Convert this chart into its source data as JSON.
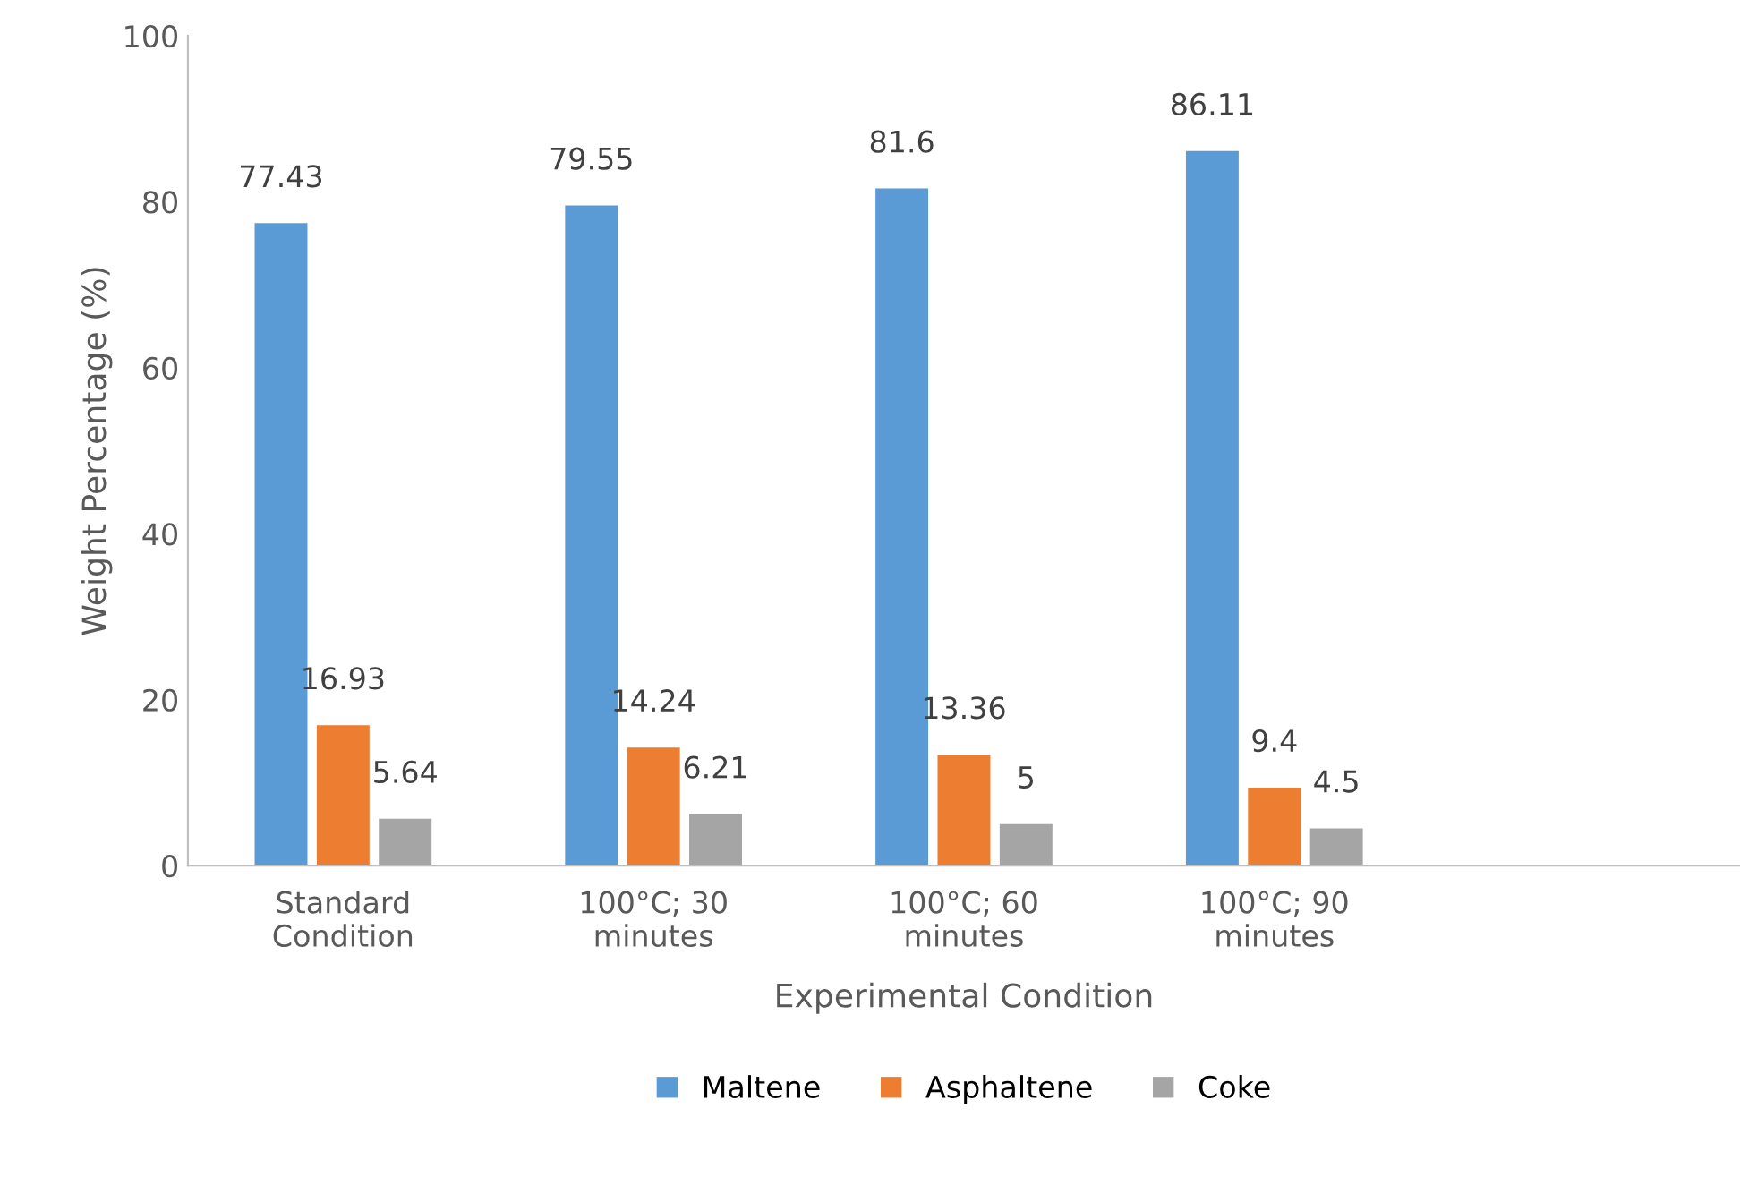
{
  "chart_data": {
    "type": "bar",
    "xlabel": "Experimental Condition",
    "ylabel": "Weight Percentage (%)",
    "categories": [
      "Standard\nCondition",
      "100°C; 30\nminutes",
      "100°C; 60\nminutes",
      "100°C; 90\nminutes",
      null
    ],
    "series": [
      {
        "name": "Maltene",
        "color": "#5b9bd5",
        "values": [
          77.43,
          79.55,
          81.6,
          86.11,
          null
        ]
      },
      {
        "name": "Asphaltene",
        "color": "#ed7d31",
        "values": [
          16.93,
          14.24,
          13.36,
          9.4,
          null
        ]
      },
      {
        "name": "Coke",
        "color": "#a5a5a5",
        "values": [
          5.64,
          6.21,
          5,
          4.5,
          null
        ]
      }
    ],
    "ylim": [
      0,
      100
    ],
    "yticks": [
      0,
      20,
      40,
      60,
      80,
      100
    ],
    "grid": false,
    "legend": "bottom",
    "data_labels": true
  }
}
